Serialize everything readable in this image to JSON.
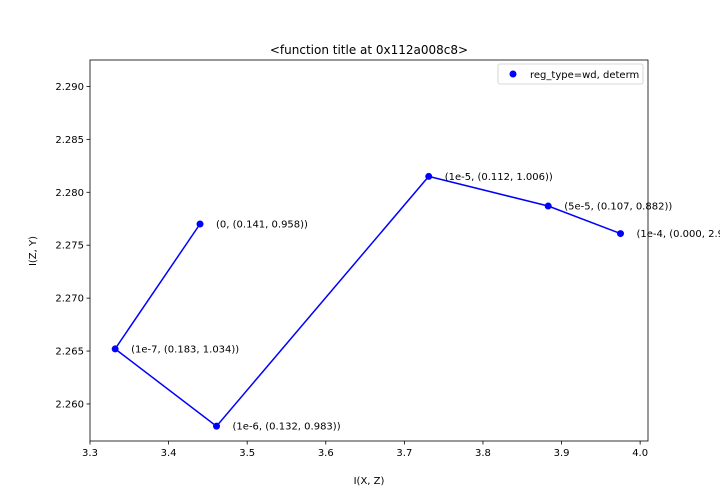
{
  "chart_data": {
    "type": "line",
    "title": "<function title at 0x112a008c8>",
    "xlabel": "I(X, Z)",
    "ylabel": "I(Z, Y)",
    "xlim": [
      3.3,
      4.01
    ],
    "ylim": [
      2.2565,
      2.2925
    ],
    "x_ticks": [
      "3.3",
      "3.4",
      "3.5",
      "3.6",
      "3.7",
      "3.8",
      "3.9",
      "4.0"
    ],
    "y_ticks": [
      "2.260",
      "2.265",
      "2.270",
      "2.275",
      "2.280",
      "2.285",
      "2.290"
    ],
    "legend_position": "top-right",
    "series": [
      {
        "name": "reg_type=wd, determ",
        "color": "#0000ff",
        "marker": "circle",
        "x": [
          3.44,
          3.332,
          3.461,
          3.731,
          3.883,
          3.975
        ],
        "y": [
          2.277,
          2.2652,
          2.2579,
          2.2815,
          2.2787,
          2.2761
        ],
        "labels": [
          "(0, (0.141, 0.958))",
          "(1e-7, (0.183, 1.034))",
          "(1e-6, (0.132, 0.983))",
          "(1e-5, (0.112, 1.006))",
          "(5e-5, (0.107, 0.882))",
          "(1e-4, (0.000, 2.9"
        ]
      }
    ]
  }
}
